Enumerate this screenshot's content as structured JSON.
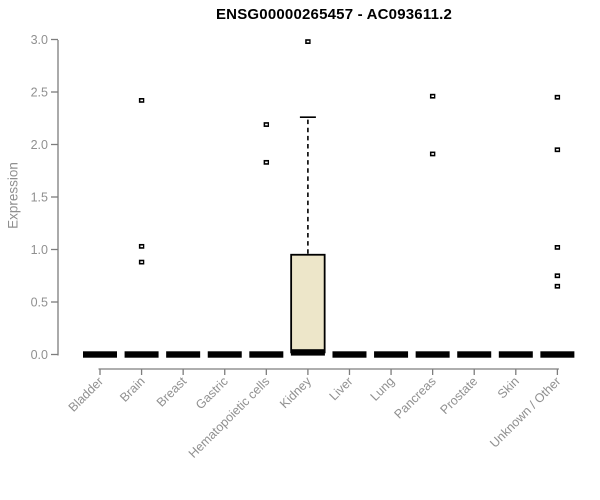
{
  "chart_data": {
    "type": "boxplot",
    "title": "ENSG00000265457 - AC093611.2",
    "ylabel": "Expression",
    "xlabel": "",
    "ylim": [
      0.0,
      3.0
    ],
    "yticks": [
      0.0,
      0.5,
      1.0,
      1.5,
      2.0,
      2.5,
      3.0
    ],
    "grid": false,
    "legend": "none",
    "colors": {
      "box_fill": "#EDE6C9",
      "box_stroke": "#000000",
      "axis_line": "#7d7d7d",
      "tick_label": "#909090",
      "title": "#000000"
    },
    "categories": [
      "Bladder",
      "Brain",
      "Breast",
      "Gastric",
      "Hematopoietic cells",
      "Kidney",
      "Liver",
      "Lung",
      "Pancreas",
      "Prostate",
      "Skin",
      "Unknown / Other"
    ],
    "boxes": [
      {
        "category": "Bladder",
        "q1": 0.0,
        "median": 0.0,
        "q3": 0.0,
        "whisker_low": 0.0,
        "whisker_high": 0.0,
        "outliers": []
      },
      {
        "category": "Brain",
        "q1": 0.0,
        "median": 0.0,
        "q3": 0.0,
        "whisker_low": 0.0,
        "whisker_high": 0.0,
        "outliers": [
          2.42,
          1.03,
          0.88
        ]
      },
      {
        "category": "Breast",
        "q1": 0.0,
        "median": 0.0,
        "q3": 0.0,
        "whisker_low": 0.0,
        "whisker_high": 0.0,
        "outliers": []
      },
      {
        "category": "Gastric",
        "q1": 0.0,
        "median": 0.0,
        "q3": 0.0,
        "whisker_low": 0.0,
        "whisker_high": 0.0,
        "outliers": []
      },
      {
        "category": "Hematopoietic cells",
        "q1": 0.0,
        "median": 0.0,
        "q3": 0.0,
        "whisker_low": 0.0,
        "whisker_high": 0.0,
        "outliers": [
          2.19,
          1.83
        ]
      },
      {
        "category": "Kidney",
        "q1": 0.02,
        "median": 0.02,
        "q3": 0.95,
        "whisker_low": 0.02,
        "whisker_high": 2.26,
        "outliers": [
          2.98
        ]
      },
      {
        "category": "Liver",
        "q1": 0.0,
        "median": 0.0,
        "q3": 0.0,
        "whisker_low": 0.0,
        "whisker_high": 0.0,
        "outliers": []
      },
      {
        "category": "Lung",
        "q1": 0.0,
        "median": 0.0,
        "q3": 0.0,
        "whisker_low": 0.0,
        "whisker_high": 0.0,
        "outliers": []
      },
      {
        "category": "Pancreas",
        "q1": 0.0,
        "median": 0.0,
        "q3": 0.0,
        "whisker_low": 0.0,
        "whisker_high": 0.0,
        "outliers": [
          2.46,
          1.91
        ]
      },
      {
        "category": "Prostate",
        "q1": 0.0,
        "median": 0.0,
        "q3": 0.0,
        "whisker_low": 0.0,
        "whisker_high": 0.0,
        "outliers": []
      },
      {
        "category": "Skin",
        "q1": 0.0,
        "median": 0.0,
        "q3": 0.0,
        "whisker_low": 0.0,
        "whisker_high": 0.0,
        "outliers": []
      },
      {
        "category": "Unknown / Other",
        "q1": 0.0,
        "median": 0.0,
        "q3": 0.0,
        "whisker_low": 0.0,
        "whisker_high": 0.0,
        "outliers": [
          2.45,
          1.95,
          1.02,
          0.75,
          0.65
        ]
      }
    ]
  }
}
